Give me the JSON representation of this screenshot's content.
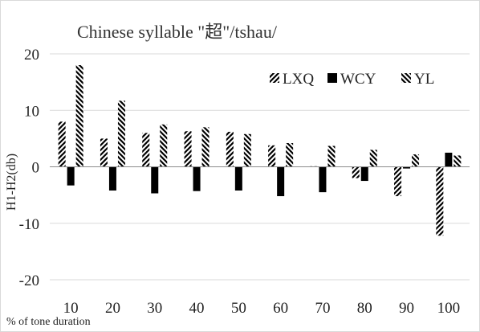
{
  "chart_data": {
    "type": "bar",
    "title": "Chinese syllable \"超\"/tshau/",
    "xlabel": "% of tone duration",
    "ylabel": "H1-H2(db)",
    "categories": [
      "10",
      "20",
      "30",
      "40",
      "50",
      "60",
      "70",
      "80",
      "90",
      "100"
    ],
    "series": [
      {
        "name": "LXQ",
        "pattern": "diagonal-right",
        "values": [
          8,
          5,
          6,
          6.3,
          6.2,
          3.8,
          0.1,
          -2,
          -5.2,
          -12.2
        ]
      },
      {
        "name": "WCY",
        "pattern": "solid",
        "values": [
          -3.3,
          -4.2,
          -4.7,
          -4.3,
          -4.2,
          -5.2,
          -4.5,
          -2.5,
          -0.3,
          2.5
        ]
      },
      {
        "name": "YL",
        "pattern": "diagonal-left",
        "values": [
          18,
          11.7,
          7.5,
          7,
          5.8,
          4.2,
          3.7,
          3,
          2.2,
          2
        ]
      }
    ],
    "ylim": [
      -20,
      20
    ],
    "yticks": [
      -20,
      -10,
      0,
      10,
      20
    ],
    "ytick_labels": [
      "-20",
      "-10",
      "0",
      "10",
      "20"
    ],
    "grid": true,
    "legend_position": "top-right",
    "colors": {
      "bars": "#000000",
      "grid": "#d9d9d9",
      "frame": "#d9d9d9"
    }
  }
}
